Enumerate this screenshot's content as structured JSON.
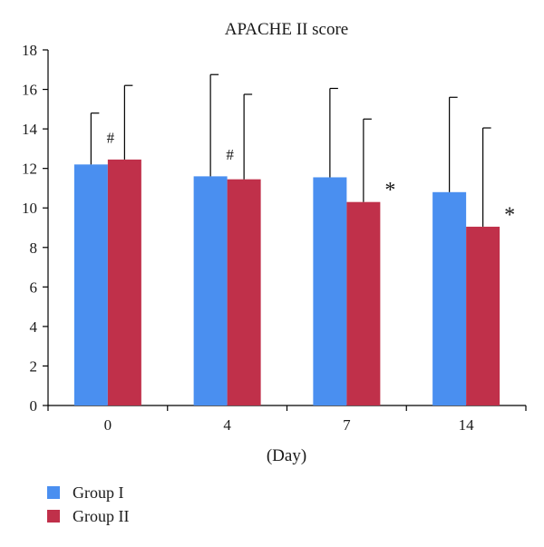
{
  "chart_data": {
    "type": "bar",
    "title": "APACHE II score",
    "xlabel": "(Day)",
    "ylabel": "",
    "categories": [
      "0",
      "4",
      "7",
      "14"
    ],
    "ylim": [
      0,
      18
    ],
    "yticks": [
      0,
      2,
      4,
      6,
      8,
      10,
      12,
      14,
      16,
      18
    ],
    "grid": false,
    "legend_position": "bottom-left",
    "series": [
      {
        "name": "Group I",
        "color": "#4a8ff0",
        "values": [
          12.2,
          11.6,
          11.55,
          10.8
        ],
        "error_upper": [
          14.8,
          16.75,
          16.05,
          15.6
        ]
      },
      {
        "name": "Group II",
        "color": "#c0304a",
        "values": [
          12.45,
          11.45,
          10.3,
          9.05
        ],
        "error_upper": [
          16.2,
          15.75,
          14.5,
          14.05
        ]
      }
    ],
    "annotations": [
      {
        "category": "0",
        "text": "#"
      },
      {
        "category": "4",
        "text": "#"
      },
      {
        "category": "7",
        "text": "*"
      },
      {
        "category": "14",
        "text": "*"
      }
    ]
  }
}
